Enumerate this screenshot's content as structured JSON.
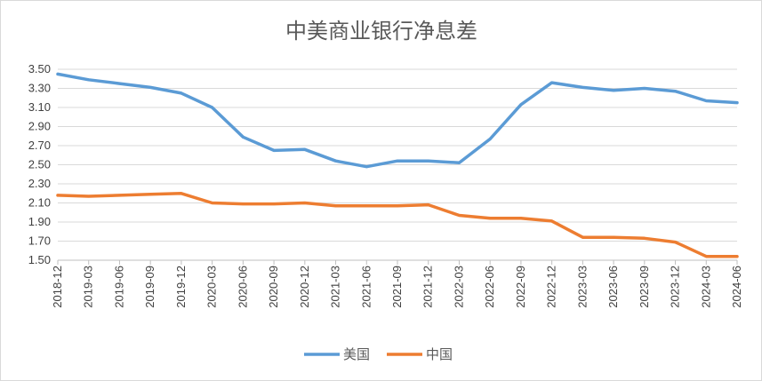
{
  "chart_data": {
    "type": "line",
    "title": "中美商业银行净息差",
    "xlabel": "",
    "ylabel": "",
    "ylim": [
      1.5,
      3.5
    ],
    "yticks": [
      "3.50",
      "3.30",
      "3.10",
      "2.90",
      "2.70",
      "2.50",
      "2.30",
      "2.10",
      "1.90",
      "1.70",
      "1.50"
    ],
    "grid": true,
    "legend_position": "bottom",
    "categories": [
      "2018-12",
      "2019-03",
      "2019-06",
      "2019-09",
      "2019-12",
      "2020-03",
      "2020-06",
      "2020-09",
      "2020-12",
      "2021-03",
      "2021-06",
      "2021-09",
      "2021-12",
      "2022-03",
      "2022-06",
      "2022-09",
      "2022-12",
      "2023-03",
      "2023-06",
      "2023-09",
      "2023-12",
      "2024-03",
      "2024-06"
    ],
    "series": [
      {
        "name": "美国",
        "color": "#5b9bd5",
        "values": [
          3.45,
          3.39,
          3.35,
          3.31,
          3.25,
          3.1,
          2.79,
          2.65,
          2.66,
          2.54,
          2.48,
          2.54,
          2.54,
          2.52,
          2.77,
          3.13,
          3.36,
          3.31,
          3.28,
          3.3,
          3.27,
          3.17,
          3.15
        ]
      },
      {
        "name": "中国",
        "color": "#ed7d31",
        "values": [
          2.18,
          2.17,
          2.18,
          2.19,
          2.2,
          2.1,
          2.09,
          2.09,
          2.1,
          2.07,
          2.07,
          2.07,
          2.08,
          1.97,
          1.94,
          1.94,
          1.91,
          1.74,
          1.74,
          1.73,
          1.69,
          1.54,
          1.54
        ]
      }
    ]
  }
}
